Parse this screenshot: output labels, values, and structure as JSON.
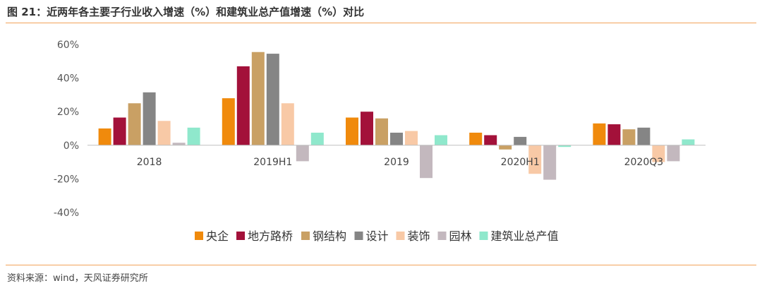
{
  "figure": {
    "title": "图 21：近两年各主要子行业收入增速（%）和建筑业总产值增速（%）对比",
    "source": "资料来源：wind，天风证券研究所"
  },
  "chart_data": {
    "type": "bar",
    "categories": [
      "2018",
      "2019H1",
      "2019",
      "2020H1",
      "2020Q3"
    ],
    "ylim": [
      -40,
      60
    ],
    "yticks": [
      60,
      40,
      20,
      0,
      -20,
      -40
    ],
    "ytick_labels": [
      "60%",
      "40%",
      "20%",
      "0%",
      "-20%",
      "-40%"
    ],
    "grid": false,
    "legend_position": "bottom",
    "series": [
      {
        "name": "央企",
        "color": "#f08a0c",
        "values": [
          10,
          28,
          16.5,
          7.5,
          13
        ]
      },
      {
        "name": "地方路桥",
        "color": "#a3113a",
        "values": [
          16.5,
          47,
          20,
          6,
          12.5
        ]
      },
      {
        "name": "钢结构",
        "color": "#c9a064",
        "values": [
          25,
          55.5,
          16,
          -2.5,
          9.5
        ]
      },
      {
        "name": "设计",
        "color": "#858585",
        "values": [
          31.5,
          54.5,
          7.5,
          5,
          10.5
        ]
      },
      {
        "name": "装饰",
        "color": "#f8c9a6",
        "values": [
          14.5,
          25,
          8.5,
          -17,
          -10
        ]
      },
      {
        "name": "园林",
        "color": "#c3b8be",
        "values": [
          1.5,
          -9.5,
          -19.5,
          -20.5,
          -9.5
        ]
      },
      {
        "name": "建筑业总产值",
        "color": "#8fe8cc",
        "values": [
          10.5,
          7.5,
          6,
          -1,
          3.5
        ]
      }
    ]
  }
}
